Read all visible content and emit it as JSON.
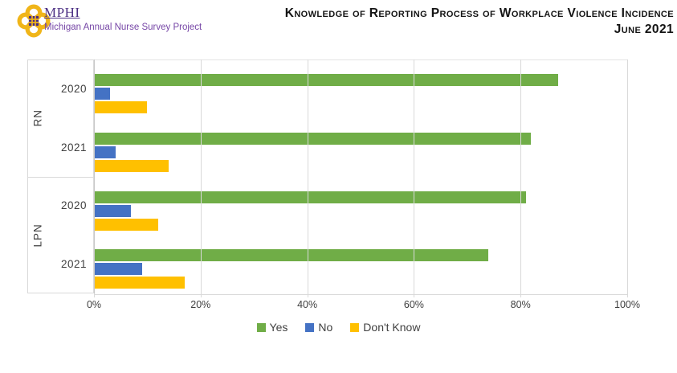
{
  "header": {
    "logo": {
      "org": "MPHI",
      "tagline": "Michigan Annual Nurse Survey Project"
    },
    "title_line1": "Knowledge of Reporting Process of Workplace Violence Incidence",
    "title_line2": "June 2021"
  },
  "colors": {
    "yes": "#70AD47",
    "no": "#4472C4",
    "dont_know": "#FFC000",
    "grid": "#D9D9D9",
    "axis_line": "#C8C8C8",
    "axis_text": "#404040",
    "brand_purple": "#4B2E83",
    "logo_gold": "#F0B519"
  },
  "chart_data": {
    "type": "bar",
    "orientation": "horizontal",
    "title": "Knowledge of Reporting Process of Workplace Violence Incidence",
    "subtitle": "June 2021",
    "xlim": [
      0,
      100
    ],
    "x_ticks": [
      "0%",
      "20%",
      "40%",
      "60%",
      "80%",
      "100%"
    ],
    "grid": true,
    "legend_position": "bottom",
    "series_order": [
      "yes",
      "no",
      "dont_know"
    ],
    "legend": [
      {
        "key": "yes",
        "label": "Yes"
      },
      {
        "key": "no",
        "label": "No"
      },
      {
        "key": "dont_know",
        "label": "Don't Know"
      }
    ],
    "groups": [
      {
        "label": "RN",
        "years": [
          {
            "label": "2020",
            "values": {
              "yes": 87,
              "no": 3,
              "dont_know": 10
            }
          },
          {
            "label": "2021",
            "values": {
              "yes": 82,
              "no": 4,
              "dont_know": 14
            }
          }
        ]
      },
      {
        "label": "LPN",
        "years": [
          {
            "label": "2020",
            "values": {
              "yes": 81,
              "no": 7,
              "dont_know": 12
            }
          },
          {
            "label": "2021",
            "values": {
              "yes": 74,
              "no": 9,
              "dont_know": 17
            }
          }
        ]
      }
    ]
  }
}
